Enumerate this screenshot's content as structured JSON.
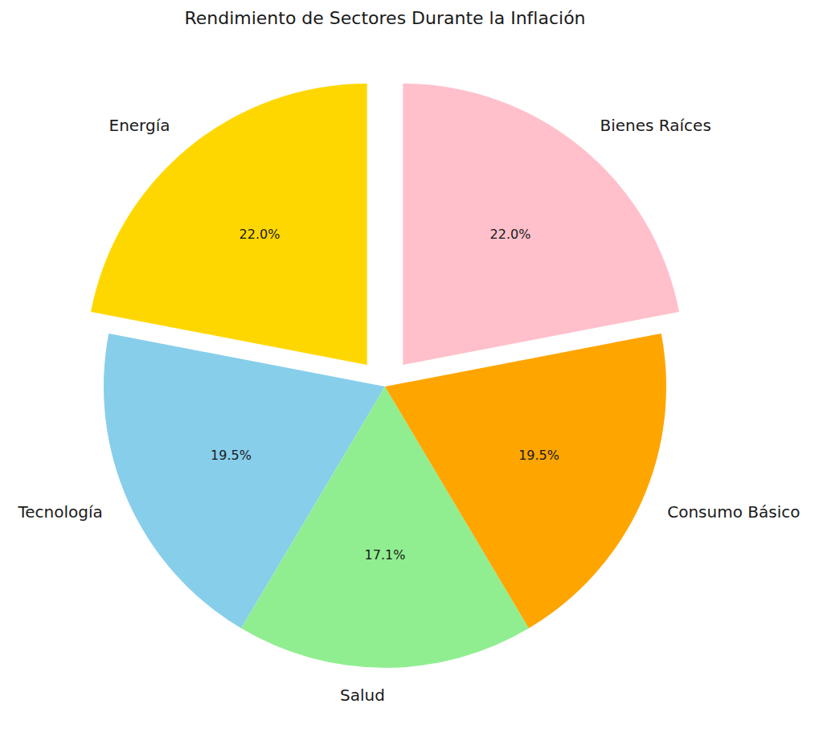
{
  "chart_data": {
    "type": "pie",
    "title": "Rendimiento de Sectores Durante la Inflación",
    "categories": [
      "Energía",
      "Tecnología",
      "Salud",
      "Consumo Básico",
      "Bienes Raíces"
    ],
    "values": [
      22.0,
      19.5,
      17.1,
      19.5,
      22.0
    ],
    "value_labels": [
      "22.0%",
      "19.5%",
      "17.1%",
      "19.5%",
      "22.0%"
    ],
    "colors": [
      "#ffd700",
      "#87ceeb",
      "#90ee90",
      "#ffa500",
      "#ffc0cb"
    ],
    "data_labels": true
  }
}
